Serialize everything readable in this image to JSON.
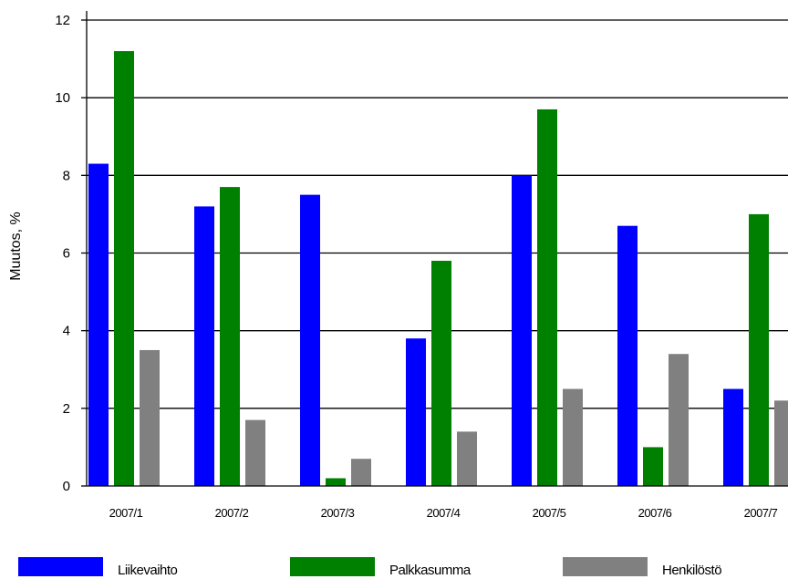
{
  "chart_data": {
    "type": "bar",
    "title": "",
    "xlabel": "",
    "ylabel": "Muutos, %",
    "ylim": [
      0,
      12
    ],
    "yticks": [
      "0",
      "2",
      "4",
      "6",
      "8",
      "10",
      "12"
    ],
    "grid": true,
    "legend_position": "bottom",
    "categories": [
      "2007/1",
      "2007/2",
      "2007/3",
      "2007/4",
      "2007/5",
      "2007/6",
      "2007/7"
    ],
    "series": [
      {
        "name": "Liikevaihto",
        "color": "#0000ff",
        "values": [
          8.3,
          7.2,
          7.5,
          3.8,
          8.0,
          6.7,
          2.5
        ]
      },
      {
        "name": "Palkkasumma",
        "color": "#008000",
        "values": [
          11.2,
          7.7,
          0.2,
          5.8,
          9.7,
          1.0,
          7.0
        ]
      },
      {
        "name": "Henkilöstö",
        "color": "#808080",
        "values": [
          3.5,
          1.7,
          0.7,
          1.4,
          2.5,
          3.4,
          2.2
        ]
      }
    ]
  }
}
